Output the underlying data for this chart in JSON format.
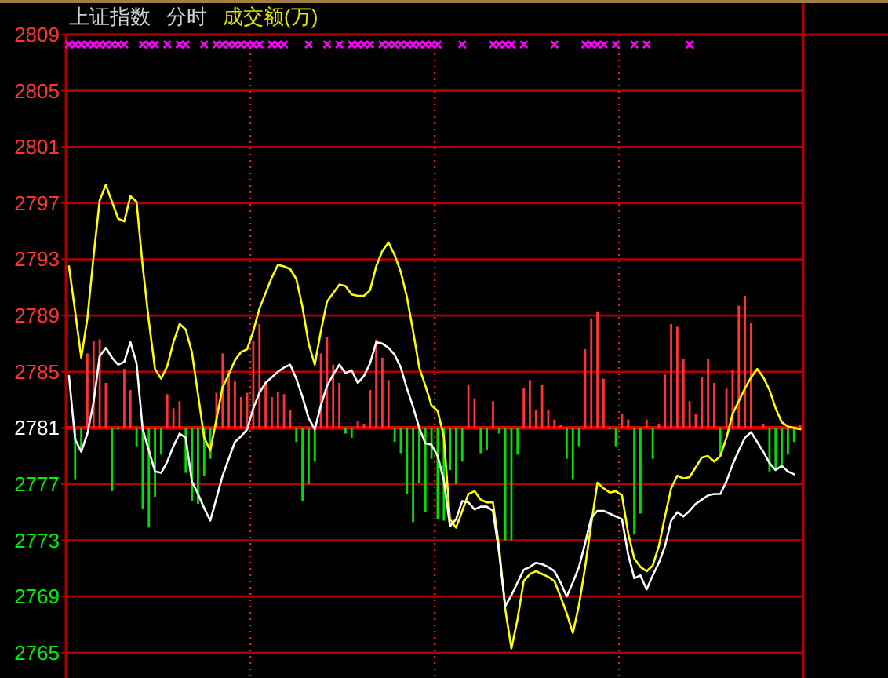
{
  "chart_data": {
    "type": "line",
    "title": "上证指数",
    "subtitle": "分时",
    "annotations": [
      "成交额(万)"
    ],
    "categories": [
      null,
      null,
      null,
      null,
      null,
      null,
      null,
      null,
      null,
      null,
      null,
      null,
      null,
      null,
      null,
      null,
      null,
      null,
      null,
      null,
      null,
      null,
      null,
      null,
      null,
      null,
      null,
      null,
      null,
      null,
      null,
      null,
      null,
      null,
      null,
      null,
      null,
      null,
      null,
      null,
      null,
      null,
      null,
      null,
      null,
      null,
      null,
      null,
      null,
      null,
      null,
      null,
      null,
      null,
      null,
      null,
      null,
      null,
      null,
      null,
      null,
      null,
      null,
      null,
      null,
      null,
      null,
      null,
      null,
      null,
      null,
      null,
      null,
      null,
      null,
      null,
      null,
      null,
      null,
      null,
      null,
      null,
      null,
      null,
      null,
      null,
      null,
      null,
      null,
      null,
      null,
      null,
      null,
      null,
      null,
      null,
      null,
      null,
      null,
      null,
      null,
      null,
      null,
      null,
      null,
      null,
      null,
      null,
      null,
      null,
      null,
      null,
      null,
      null,
      null,
      null,
      null,
      null,
      null,
      null
    ],
    "ylim": [
      2763.2,
      2809
    ],
    "yticks": [
      2765,
      2769,
      2773,
      2777,
      2781,
      2785,
      2789,
      2793,
      2797,
      2801,
      2805,
      2809
    ],
    "tick_labels": "y",
    "grid": true,
    "ref_lines": [
      {
        "axis": "y",
        "value": 2781,
        "color": "#e00000"
      }
    ],
    "series": [
      {
        "type": "bar",
        "values": [
          null,
          -3.7,
          -1.5,
          5.3,
          6.2,
          6.3,
          3.2,
          -4.5,
          -0.1,
          4.2,
          2.7,
          -1.3,
          -5.8,
          -7.1,
          -4.9,
          -1.9,
          2.4,
          1.4,
          1.9,
          -3.2,
          -5.2,
          -5.4,
          -3.4,
          -2.2,
          2.5,
          5.3,
          4.1,
          3.3,
          2.2,
          2.5,
          6.2,
          7.4,
          3.3,
          2.2,
          2.6,
          2.4,
          1.3,
          -1.0,
          -5.2,
          -4.0,
          -2.4,
          5.3,
          6.5,
          4.5,
          3.2,
          -0.4,
          -0.7,
          0.5,
          0.3,
          2.7,
          6.3,
          5.0,
          3.4,
          -1.0,
          -1.8,
          -4.7,
          -6.7,
          -3.9,
          -6.0,
          -2.2,
          -6.5,
          -6.6,
          -3.0,
          -4.0,
          -2.4,
          3.1,
          2.1,
          -1.8,
          -1.6,
          1.9,
          -0.4,
          -8.0,
          -8.0,
          -1.9,
          2.8,
          3.4,
          1.3,
          3.1,
          1.3,
          0.6,
          0.2,
          -2.2,
          -3.7,
          -1.3,
          5.6,
          7.8,
          8.3,
          3.5,
          -0.1,
          -1.3,
          1.0,
          0.6,
          -7.6,
          -6.1,
          0.6,
          -2.2,
          0.3,
          3.8,
          7.4,
          7.2,
          4.9,
          1.9,
          1.0,
          3.6,
          4.9,
          3.2,
          -1.9,
          2.8,
          4.1,
          8.7,
          9.4,
          7.5,
          null,
          0.3,
          -3.1,
          -2.9,
          -2.6,
          -1.9,
          -1.0,
          0.2
        ],
        "base": [
          null,
          2781,
          2781,
          2781,
          2781,
          2781,
          2781,
          2781,
          2781,
          2781,
          2781,
          2781,
          2781,
          2781,
          2781,
          2781,
          2781,
          2781,
          2781,
          2781,
          2781,
          2781,
          2781,
          2781,
          2781,
          2781,
          2781,
          2781,
          2781,
          2781,
          2781,
          2781,
          2781,
          2781,
          2781,
          2781,
          2781,
          2781,
          2781,
          2781,
          2781,
          2781,
          2781,
          2781,
          2781,
          2781,
          2781,
          2781,
          2781,
          2781,
          2781,
          2781,
          2781,
          2781,
          2781,
          2781,
          2781,
          2781,
          2781,
          2781,
          2781,
          2781,
          2781,
          2781,
          2781,
          2781,
          2781,
          2781,
          2781,
          2781,
          2781,
          2781,
          2781,
          2781,
          2781,
          2781,
          2781,
          2781,
          2781,
          2781,
          2781,
          2781,
          2781,
          2781,
          2781,
          2781,
          2781,
          2781,
          2781,
          2781,
          2781,
          2781,
          2781,
          2781,
          2781,
          2781,
          2781,
          2781,
          2781,
          2781,
          2781,
          2781,
          2781,
          2781,
          2781,
          2781,
          2781,
          2781,
          2781,
          2781,
          2781,
          2781,
          null,
          2781,
          2781,
          2781,
          2781,
          2781,
          2781,
          2781
        ],
        "colors": [
          null,
          "#00e000",
          "#00e000",
          "#ff3333",
          "#ff3333",
          "#ff3333",
          "#ff3333",
          "#00e000",
          "#00e000",
          "#ff3333",
          "#ff3333",
          "#00e000",
          "#00e000",
          "#00e000",
          "#00e000",
          "#00e000",
          "#ff3333",
          "#ff3333",
          "#ff3333",
          "#00e000",
          "#00e000",
          "#00e000",
          "#00e000",
          "#00e000",
          "#ff3333",
          "#ff3333",
          "#ff3333",
          "#ff3333",
          "#ff3333",
          "#ff3333",
          "#ff3333",
          "#ff3333",
          "#ff3333",
          "#ff3333",
          "#ff3333",
          "#ff3333",
          "#ff3333",
          "#00e000",
          "#00e000",
          "#00e000",
          "#00e000",
          "#ff3333",
          "#ff3333",
          "#ff3333",
          "#ff3333",
          "#00e000",
          "#00e000",
          "#ff3333",
          "#ff3333",
          "#ff3333",
          "#ff3333",
          "#ff3333",
          "#ff3333",
          "#00e000",
          "#00e000",
          "#00e000",
          "#00e000",
          "#00e000",
          "#00e000",
          "#00e000",
          "#00e000",
          "#00e000",
          "#00e000",
          "#00e000",
          "#00e000",
          "#ff3333",
          "#ff3333",
          "#00e000",
          "#00e000",
          "#ff3333",
          "#00e000",
          "#00e000",
          "#00e000",
          "#00e000",
          "#ff3333",
          "#ff3333",
          "#ff3333",
          "#ff3333",
          "#ff3333",
          "#ff3333",
          "#ff3333",
          "#00e000",
          "#00e000",
          "#00e000",
          "#ff3333",
          "#ff3333",
          "#ff3333",
          "#ff3333",
          "#00e000",
          "#00e000",
          "#ff3333",
          "#ff3333",
          "#00e000",
          "#00e000",
          "#ff3333",
          "#00e000",
          "#ff3333",
          "#ff3333",
          "#ff3333",
          "#ff3333",
          "#ff3333",
          "#ff3333",
          "#ff3333",
          "#ff3333",
          "#ff3333",
          "#ff3333",
          "#00e000",
          "#ff3333",
          "#ff3333",
          "#ff3333",
          "#ff3333",
          "#ff3333",
          null,
          "#ff3333",
          "#00e000",
          "#00e000",
          "#00e000",
          "#00e000",
          "#00e000",
          "#ff3333"
        ]
      },
      {
        "color": "#ffff00",
        "values": [
          2792.5,
          2789.3,
          2786.0,
          2788.8,
          2793.2,
          2797.2,
          2798.3,
          2797.1,
          2795.9,
          2795.7,
          2797.5,
          2797.1,
          2792.5,
          2788.6,
          2785.2,
          2784.5,
          2785.4,
          2787.1,
          2788.4,
          2788.0,
          2786.4,
          2783.4,
          2780.3,
          2779.4,
          2781.6,
          2783.9,
          2784.8,
          2785.8,
          2786.4,
          2786.6,
          2787.9,
          2789.5,
          2790.6,
          2791.7,
          2792.6,
          2792.5,
          2792.3,
          2791.6,
          2789.6,
          2787.0,
          2785.5,
          2787.9,
          2790.0,
          2790.6,
          2791.2,
          2791.1,
          2790.5,
          2790.4,
          2790.4,
          2790.8,
          2792.5,
          2793.6,
          2794.2,
          2793.3,
          2792.1,
          2790.3,
          2787.9,
          2785.3,
          2784.0,
          2782.6,
          2782.2,
          2780.4,
          2774.5,
          2773.9,
          2775.1,
          2776.3,
          2776.5,
          2775.9,
          2775.7,
          2775.7,
          2772.5,
          2768.1,
          2765.3,
          2767.4,
          2770.1,
          2770.6,
          2770.8,
          2770.6,
          2770.4,
          2770.1,
          2769.0,
          2767.8,
          2766.4,
          2768.4,
          2771.1,
          2774.2,
          2777.1,
          2776.7,
          2776.4,
          2776.5,
          2776.2,
          2773.5,
          2771.7,
          2771.1,
          2770.8,
          2771.2,
          2772.6,
          2774.7,
          2776.7,
          2777.6,
          2777.4,
          2777.5,
          2778.2,
          2778.9,
          2779.0,
          2778.6,
          2779.0,
          2780.3,
          2782.0,
          2782.9,
          2783.8,
          2784.6,
          2785.2,
          2784.6,
          2783.7,
          2782.4,
          2781.4,
          2781.1,
          2781.0,
          2780.9
        ]
      },
      {
        "color": "#ffffff",
        "values": [
          2784.7,
          2780.2,
          2779.3,
          2780.6,
          2782.8,
          2786.1,
          2786.7,
          2786.0,
          2785.5,
          2785.7,
          2787.1,
          2785.6,
          2780.9,
          2779.4,
          2777.9,
          2777.8,
          2778.6,
          2779.7,
          2780.6,
          2780.3,
          2777.2,
          2776.3,
          2775.3,
          2774.4,
          2776.0,
          2777.6,
          2778.8,
          2780.0,
          2780.4,
          2780.9,
          2782.4,
          2783.5,
          2784.2,
          2784.6,
          2785.0,
          2785.3,
          2785.5,
          2784.5,
          2783.2,
          2781.7,
          2780.9,
          2782.6,
          2784.0,
          2784.8,
          2785.5,
          2784.9,
          2785.1,
          2784.2,
          2784.7,
          2785.6,
          2787.1,
          2787.0,
          2786.7,
          2786.2,
          2785.3,
          2783.8,
          2782.5,
          2781.0,
          2779.9,
          2779.8,
          2779.0,
          2777.3,
          2774.0,
          2774.5,
          2775.8,
          2775.7,
          2775.2,
          2775.4,
          2775.4,
          2775.1,
          2772.1,
          2768.3,
          2769.1,
          2770.0,
          2770.9,
          2771.1,
          2771.4,
          2771.3,
          2771.1,
          2770.8,
          2770.0,
          2769.0,
          2770.0,
          2771.1,
          2772.8,
          2774.6,
          2775.1,
          2775.1,
          2774.9,
          2774.7,
          2774.5,
          2772.0,
          2770.3,
          2770.5,
          2769.5,
          2770.5,
          2771.4,
          2772.6,
          2774.4,
          2775.0,
          2774.7,
          2775.1,
          2775.6,
          2775.9,
          2776.2,
          2776.3,
          2776.3,
          2777.2,
          2778.4,
          2779.4,
          2780.3,
          2780.7,
          2780.0,
          2779.3,
          2778.5,
          2778.0,
          2778.3,
          2777.9,
          2777.7,
          null
        ]
      },
      {
        "type": "scatter",
        "color": "#ff00ff",
        "marker": "cross",
        "values": [
          2808.3,
          2808.3,
          2808.3,
          2808.3,
          2808.3,
          2808.3,
          2808.3,
          2808.3,
          2808.3,
          2808.3,
          null,
          null,
          2808.3,
          2808.3,
          2808.3,
          null,
          2808.3,
          null,
          2808.3,
          2808.3,
          null,
          null,
          2808.3,
          null,
          2808.3,
          2808.3,
          2808.3,
          2808.3,
          2808.3,
          2808.3,
          2808.3,
          2808.3,
          null,
          2808.3,
          2808.3,
          2808.3,
          null,
          null,
          null,
          2808.3,
          null,
          null,
          2808.3,
          null,
          2808.3,
          null,
          2808.3,
          2808.3,
          2808.3,
          2808.3,
          null,
          2808.3,
          2808.3,
          2808.3,
          2808.3,
          2808.3,
          2808.3,
          2808.3,
          2808.3,
          2808.3,
          2808.3,
          null,
          null,
          null,
          2808.3,
          null,
          null,
          null,
          null,
          2808.3,
          2808.3,
          2808.3,
          2808.3,
          null,
          2808.3,
          null,
          null,
          null,
          null,
          2808.3,
          null,
          null,
          null,
          null,
          2808.3,
          2808.3,
          2808.3,
          2808.3,
          null,
          2808.3,
          null,
          null,
          2808.3,
          null,
          2808.3,
          null,
          null,
          null,
          null,
          null,
          null,
          2808.3,
          null,
          null,
          null,
          null,
          null,
          null,
          null,
          null,
          null,
          null,
          null,
          null,
          null,
          null,
          null,
          null,
          null,
          null
        ]
      }
    ]
  }
}
